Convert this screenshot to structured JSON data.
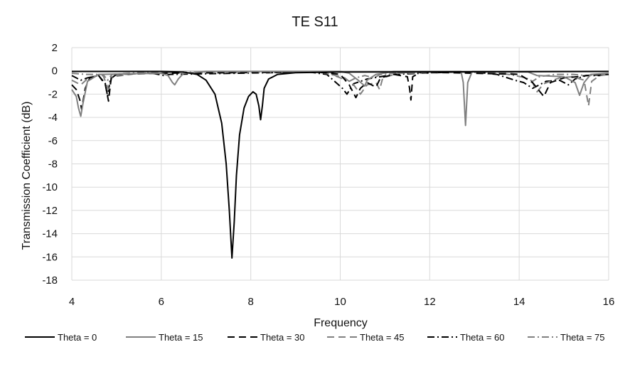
{
  "chart_data": {
    "type": "line",
    "title": "TE S11",
    "xlabel": "Frequency",
    "ylabel": "Transmission Coefficient (dB)",
    "xlim": [
      4,
      16
    ],
    "ylim": [
      -18,
      2
    ],
    "xticks": [
      "4",
      "6",
      "8",
      "10",
      "12",
      "14",
      "16"
    ],
    "yticks": [
      "2",
      "0",
      "-2",
      "-4",
      "-6",
      "-8",
      "-10",
      "-12",
      "-14",
      "-16",
      "-18"
    ],
    "grid": "horizontal",
    "legend": "bottom",
    "series": [
      {
        "name": "Theta = 0",
        "color": "#000000",
        "dash": "solid",
        "points": [
          [
            4.0,
            -0.05
          ],
          [
            6.0,
            -0.05
          ],
          [
            6.5,
            -0.1
          ],
          [
            6.8,
            -0.3
          ],
          [
            7.0,
            -0.8
          ],
          [
            7.2,
            -2.0
          ],
          [
            7.35,
            -4.5
          ],
          [
            7.45,
            -8.0
          ],
          [
            7.52,
            -12.0
          ],
          [
            7.58,
            -16.1
          ],
          [
            7.63,
            -13.0
          ],
          [
            7.68,
            -9.0
          ],
          [
            7.75,
            -5.5
          ],
          [
            7.85,
            -3.2
          ],
          [
            7.95,
            -2.2
          ],
          [
            8.05,
            -1.8
          ],
          [
            8.12,
            -2.0
          ],
          [
            8.18,
            -3.0
          ],
          [
            8.22,
            -4.2
          ],
          [
            8.26,
            -3.0
          ],
          [
            8.3,
            -1.5
          ],
          [
            8.4,
            -0.7
          ],
          [
            8.6,
            -0.3
          ],
          [
            9.0,
            -0.15
          ],
          [
            10.0,
            -0.1
          ],
          [
            16.0,
            -0.05
          ]
        ]
      },
      {
        "name": "Theta = 15",
        "color": "#808080",
        "dash": "solid",
        "points": [
          [
            4.0,
            -1.6
          ],
          [
            4.1,
            -2.2
          ],
          [
            4.15,
            -3.2
          ],
          [
            4.2,
            -3.9
          ],
          [
            4.25,
            -2.8
          ],
          [
            4.35,
            -0.9
          ],
          [
            4.6,
            -0.3
          ],
          [
            6.0,
            -0.2
          ],
          [
            6.15,
            -0.4
          ],
          [
            6.25,
            -1.0
          ],
          [
            6.3,
            -1.2
          ],
          [
            6.38,
            -0.7
          ],
          [
            6.5,
            -0.2
          ],
          [
            7.0,
            -0.05
          ],
          [
            10.0,
            -0.05
          ],
          [
            10.2,
            -0.2
          ],
          [
            10.4,
            -0.8
          ],
          [
            10.55,
            -1.3
          ],
          [
            10.6,
            -0.8
          ],
          [
            10.8,
            -0.3
          ],
          [
            11.2,
            -0.05
          ],
          [
            12.7,
            -0.05
          ],
          [
            12.75,
            -1.0
          ],
          [
            12.8,
            -4.7
          ],
          [
            12.85,
            -1.0
          ],
          [
            12.95,
            -0.05
          ],
          [
            14.2,
            -0.1
          ],
          [
            14.4,
            -0.4
          ],
          [
            15.0,
            -0.5
          ],
          [
            15.25,
            -1.0
          ],
          [
            15.35,
            -2.1
          ],
          [
            15.45,
            -1.0
          ],
          [
            15.6,
            -0.3
          ],
          [
            16.0,
            -0.2
          ]
        ]
      },
      {
        "name": "Theta = 30",
        "color": "#000000",
        "dash": "10 6",
        "points": [
          [
            4.0,
            -1.2
          ],
          [
            4.1,
            -1.6
          ],
          [
            4.18,
            -2.5
          ],
          [
            4.22,
            -3.3
          ],
          [
            4.3,
            -1.5
          ],
          [
            4.4,
            -0.6
          ],
          [
            4.6,
            -0.4
          ],
          [
            4.75,
            -1.2
          ],
          [
            4.82,
            -2.6
          ],
          [
            4.88,
            -0.6
          ],
          [
            5.0,
            -0.3
          ],
          [
            6.0,
            -0.2
          ],
          [
            9.5,
            -0.1
          ],
          [
            10.0,
            -0.3
          ],
          [
            10.2,
            -1.2
          ],
          [
            10.35,
            -2.3
          ],
          [
            10.45,
            -1.5
          ],
          [
            10.6,
            -1.0
          ],
          [
            10.8,
            -1.4
          ],
          [
            10.9,
            -0.6
          ],
          [
            11.2,
            -0.3
          ],
          [
            11.5,
            -0.5
          ],
          [
            11.55,
            -1.5
          ],
          [
            11.58,
            -2.5
          ],
          [
            11.62,
            -0.5
          ],
          [
            11.8,
            -0.1
          ],
          [
            14.0,
            -0.3
          ],
          [
            14.3,
            -1.0
          ],
          [
            14.55,
            -2.2
          ],
          [
            14.7,
            -1.0
          ],
          [
            15.0,
            -0.6
          ],
          [
            15.3,
            -0.5
          ],
          [
            15.5,
            -0.4
          ],
          [
            16.0,
            -0.3
          ]
        ]
      },
      {
        "name": "Theta = 45",
        "color": "#808080",
        "dash": "10 6",
        "points": [
          [
            4.0,
            -0.8
          ],
          [
            4.2,
            -1.2
          ],
          [
            4.4,
            -0.5
          ],
          [
            4.7,
            -0.4
          ],
          [
            4.82,
            -1.6
          ],
          [
            4.9,
            -0.5
          ],
          [
            5.5,
            -0.2
          ],
          [
            9.5,
            -0.1
          ],
          [
            9.8,
            -0.3
          ],
          [
            10.1,
            -0.6
          ],
          [
            10.3,
            -1.2
          ],
          [
            10.45,
            -2.0
          ],
          [
            10.6,
            -1.2
          ],
          [
            10.8,
            -1.0
          ],
          [
            10.88,
            -1.6
          ],
          [
            10.95,
            -0.6
          ],
          [
            11.3,
            -0.2
          ],
          [
            13.5,
            -0.1
          ],
          [
            14.0,
            -0.3
          ],
          [
            14.3,
            -1.0
          ],
          [
            14.4,
            -1.8
          ],
          [
            14.55,
            -1.1
          ],
          [
            14.9,
            -0.6
          ],
          [
            15.2,
            -0.5
          ],
          [
            15.45,
            -0.8
          ],
          [
            15.55,
            -3.0
          ],
          [
            15.62,
            -0.9
          ],
          [
            15.8,
            -0.4
          ],
          [
            16.0,
            -0.3
          ]
        ]
      },
      {
        "name": "Theta = 60",
        "color": "#000000",
        "dash": "10 4 2 4",
        "points": [
          [
            4.0,
            -0.4
          ],
          [
            4.2,
            -0.8
          ],
          [
            4.35,
            -0.6
          ],
          [
            4.6,
            -0.4
          ],
          [
            4.75,
            -1.1
          ],
          [
            4.8,
            -2.2
          ],
          [
            4.86,
            -0.7
          ],
          [
            5.0,
            -0.3
          ],
          [
            5.8,
            -0.2
          ],
          [
            6.05,
            -0.4
          ],
          [
            6.2,
            -0.3
          ],
          [
            9.3,
            -0.1
          ],
          [
            9.7,
            -0.3
          ],
          [
            10.05,
            -1.5
          ],
          [
            10.15,
            -2.0
          ],
          [
            10.3,
            -1.1
          ],
          [
            10.6,
            -0.7
          ],
          [
            10.9,
            -0.5
          ],
          [
            11.2,
            -0.3
          ],
          [
            12.5,
            -0.1
          ],
          [
            13.0,
            -0.1
          ],
          [
            13.5,
            -0.3
          ],
          [
            13.9,
            -0.8
          ],
          [
            14.1,
            -1.0
          ],
          [
            14.3,
            -1.5
          ],
          [
            14.4,
            -1.3
          ],
          [
            14.6,
            -0.9
          ],
          [
            14.9,
            -0.8
          ],
          [
            15.1,
            -1.2
          ],
          [
            15.25,
            -0.7
          ],
          [
            15.5,
            -0.4
          ],
          [
            15.8,
            -0.4
          ],
          [
            16.0,
            -0.3
          ]
        ]
      },
      {
        "name": "Theta = 75",
        "color": "#808080",
        "dash": "10 4 2 4",
        "points": [
          [
            4.0,
            -0.2
          ],
          [
            4.3,
            -0.3
          ],
          [
            4.7,
            -0.3
          ],
          [
            4.8,
            -0.8
          ],
          [
            4.9,
            -0.3
          ],
          [
            5.5,
            -0.15
          ],
          [
            8.0,
            -0.05
          ],
          [
            9.5,
            -0.1
          ],
          [
            9.8,
            -0.3
          ],
          [
            10.0,
            -0.6
          ],
          [
            10.2,
            -0.9
          ],
          [
            10.35,
            -0.6
          ],
          [
            10.55,
            -0.4
          ],
          [
            10.75,
            -0.6
          ],
          [
            10.9,
            -0.3
          ],
          [
            11.3,
            -0.15
          ],
          [
            13.0,
            -0.1
          ],
          [
            13.6,
            -0.2
          ],
          [
            13.9,
            -0.4
          ],
          [
            14.15,
            -0.6
          ],
          [
            14.3,
            -0.9
          ],
          [
            14.45,
            -0.5
          ],
          [
            14.8,
            -0.3
          ],
          [
            15.2,
            -0.3
          ],
          [
            15.5,
            -0.4
          ],
          [
            15.75,
            -0.3
          ],
          [
            16.0,
            -0.2
          ]
        ]
      }
    ]
  }
}
